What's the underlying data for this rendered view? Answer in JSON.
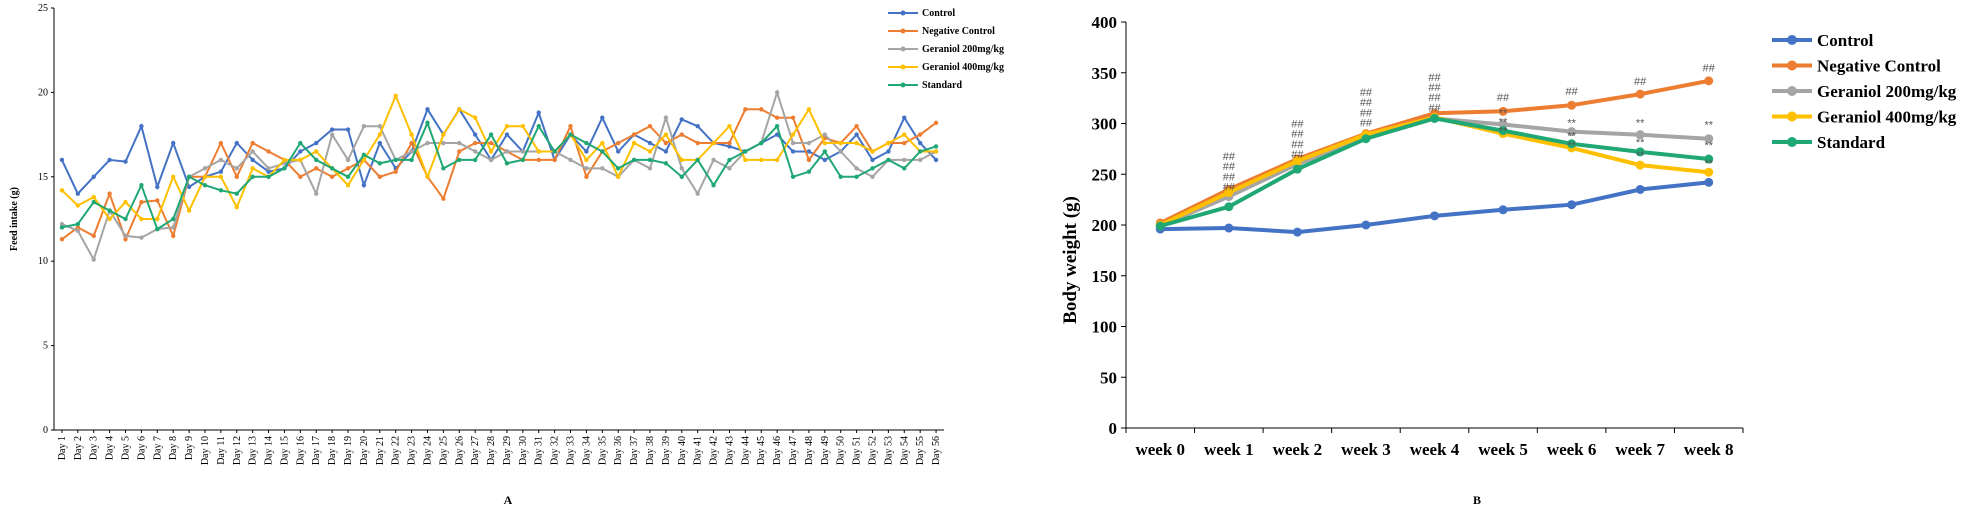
{
  "colors": {
    "Control": "#4472C4",
    "Negative Control": "#ED7D31",
    "Geraniol 200mg/kg": "#A5A5A5",
    "Geraniol 400mg/kg": "#FFC000",
    "Standard": "#1FA774"
  },
  "chart_data": [
    {
      "panel": "A",
      "type": "line",
      "ylabel": "Feed intake (g)",
      "xlabel": "",
      "ylim": [
        0,
        25
      ],
      "yticks": [
        0,
        5,
        10,
        15,
        20,
        25
      ],
      "legend_position": "top-right",
      "categories": [
        "Day 1",
        "Day 2",
        "Day 3",
        "Day 4",
        "Day 5",
        "Day 6",
        "Day 7",
        "Day 8",
        "Day 9",
        "Day 10",
        "Day 11",
        "Day 12",
        "Day 13",
        "Day 14",
        "Day 15",
        "Day 16",
        "Day 17",
        "Day 18",
        "Day 19",
        "Day 20",
        "Day 21",
        "Day 22",
        "Day 23",
        "Day 24",
        "Day 25",
        "Day 26",
        "Day 27",
        "Day 28",
        "Day 29",
        "Day 30",
        "Day 31",
        "Day 32",
        "Day 33",
        "Day 34",
        "Day 35",
        "Day 36",
        "Day 37",
        "Day 38",
        "Day 39",
        "Day 40",
        "Day 41",
        "Day 42",
        "Day 43",
        "Day 44",
        "Day 45",
        "Day 46",
        "Day 47",
        "Day 48",
        "Day 49",
        "Day 50",
        "Day 51",
        "Day 52",
        "Day 53",
        "Day 54",
        "Day 55",
        "Day 56"
      ],
      "series": [
        {
          "name": "Control",
          "values": [
            16.0,
            14.0,
            15.0,
            16.0,
            15.9,
            18.0,
            14.4,
            17.0,
            14.4,
            15.0,
            15.3,
            17.0,
            16.0,
            15.3,
            15.5,
            16.5,
            17.0,
            17.8,
            17.8,
            14.5,
            17.0,
            15.5,
            16.5,
            19.0,
            17.5,
            19.0,
            17.5,
            16.0,
            17.5,
            16.5,
            18.8,
            16.0,
            17.5,
            16.5,
            18.5,
            16.5,
            17.5,
            17.0,
            16.5,
            18.4,
            18.0,
            17.0,
            16.8,
            16.5,
            17.0,
            17.5,
            16.5,
            16.5,
            16.0,
            16.5,
            17.5,
            16.0,
            16.5,
            18.5,
            17.0,
            16.0
          ]
        },
        {
          "name": "Negative Control",
          "values": [
            11.3,
            12.0,
            11.5,
            14.0,
            11.3,
            13.5,
            13.6,
            11.5,
            15.0,
            15.0,
            17.0,
            15.0,
            17.0,
            16.5,
            16.0,
            15.0,
            15.5,
            15.0,
            15.5,
            16.0,
            15.0,
            15.3,
            17.0,
            15.0,
            13.7,
            16.5,
            17.0,
            17.0,
            16.5,
            16.0,
            16.0,
            16.0,
            18.0,
            15.0,
            16.5,
            17.0,
            17.5,
            18.0,
            17.0,
            17.5,
            17.0,
            17.0,
            17.0,
            19.0,
            19.0,
            18.5,
            18.5,
            16.0,
            17.3,
            17.0,
            18.0,
            16.5,
            17.0,
            17.0,
            17.5,
            18.2
          ]
        },
        {
          "name": "Geraniol 200mg/kg",
          "values": [
            12.2,
            11.8,
            10.1,
            13.0,
            11.5,
            11.4,
            11.9,
            12.0,
            15.0,
            15.5,
            16.0,
            15.5,
            16.5,
            15.5,
            15.8,
            16.0,
            14.0,
            17.5,
            16.0,
            18.0,
            18.0,
            16.0,
            16.5,
            17.0,
            17.0,
            17.0,
            16.5,
            16.0,
            16.5,
            16.5,
            16.5,
            16.5,
            16.0,
            15.5,
            15.5,
            15.0,
            16.0,
            15.5,
            18.5,
            15.5,
            14.0,
            16.0,
            15.5,
            16.5,
            17.0,
            20.0,
            17.0,
            17.0,
            17.5,
            16.5,
            15.5,
            15.0,
            16.0,
            16.0,
            16.0,
            16.5
          ]
        },
        {
          "name": "Geraniol 400mg/kg",
          "values": [
            14.2,
            13.3,
            13.8,
            12.5,
            13.5,
            12.5,
            12.5,
            15.0,
            13.0,
            15.0,
            15.0,
            13.2,
            15.5,
            15.0,
            16.0,
            16.0,
            16.5,
            15.5,
            14.5,
            16.0,
            17.5,
            19.8,
            17.5,
            15.0,
            17.5,
            19.0,
            18.5,
            16.5,
            18.0,
            18.0,
            16.5,
            16.5,
            17.5,
            16.0,
            17.0,
            15.0,
            17.0,
            16.5,
            17.5,
            16.0,
            16.0,
            17.0,
            18.0,
            16.0,
            16.0,
            16.0,
            17.5,
            19.0,
            17.0,
            17.0,
            17.0,
            16.5,
            17.0,
            17.5,
            16.5,
            16.5
          ]
        },
        {
          "name": "Standard",
          "values": [
            12.0,
            12.2,
            13.5,
            13.0,
            12.5,
            14.5,
            11.9,
            12.5,
            15.0,
            14.5,
            14.2,
            14.0,
            15.0,
            15.0,
            15.5,
            17.0,
            16.0,
            15.5,
            15.0,
            16.3,
            15.8,
            16.0,
            16.0,
            18.2,
            15.5,
            16.0,
            16.0,
            17.5,
            15.8,
            16.0,
            18.0,
            16.5,
            17.5,
            17.0,
            16.5,
            15.5,
            16.0,
            16.0,
            15.8,
            15.0,
            16.0,
            14.5,
            16.0,
            16.5,
            17.0,
            18.0,
            15.0,
            15.3,
            16.5,
            15.0,
            15.0,
            15.5,
            16.0,
            15.5,
            16.5,
            16.8
          ]
        }
      ],
      "panel_label": "A"
    },
    {
      "panel": "B",
      "type": "line",
      "ylabel": "Body weight (g)",
      "xlabel": "",
      "ylim": [
        0,
        400
      ],
      "yticks": [
        0,
        50,
        100,
        150,
        200,
        250,
        300,
        350,
        400
      ],
      "legend_position": "top-right",
      "categories": [
        "week 0",
        "week 1",
        "week 2",
        "week 3",
        "week 4",
        "week 5",
        "week 6",
        "week 7",
        "week 8"
      ],
      "series": [
        {
          "name": "Control",
          "values": [
            196,
            197,
            193,
            200,
            209,
            215,
            220,
            235,
            242
          ]
        },
        {
          "name": "Negative Control",
          "values": [
            202,
            235,
            265,
            290,
            310,
            312,
            318,
            329,
            342
          ]
        },
        {
          "name": "Geraniol 200mg/kg",
          "values": [
            199,
            228,
            260,
            286,
            305,
            299,
            292,
            289,
            285
          ]
        },
        {
          "name": "Geraniol 400mg/kg",
          "values": [
            200,
            232,
            263,
            289,
            306,
            290,
            276,
            259,
            252
          ]
        },
        {
          "name": "Standard",
          "values": [
            199,
            218,
            255,
            285,
            305,
            293,
            280,
            272,
            265
          ]
        }
      ],
      "annotations": [
        {
          "week": "week 1",
          "text": "##",
          "value": 264
        },
        {
          "week": "week 1",
          "text": "##",
          "value": 254
        },
        {
          "week": "week 1",
          "text": "##",
          "value": 244
        },
        {
          "week": "week 1",
          "text": "##",
          "value": 234
        },
        {
          "week": "week 2",
          "text": "##",
          "value": 296
        },
        {
          "week": "week 2",
          "text": "##",
          "value": 286
        },
        {
          "week": "week 2",
          "text": "##",
          "value": 276
        },
        {
          "week": "week 2",
          "text": "##",
          "value": 266
        },
        {
          "week": "week 3",
          "text": "##",
          "value": 327
        },
        {
          "week": "week 3",
          "text": "##",
          "value": 317
        },
        {
          "week": "week 3",
          "text": "##",
          "value": 307
        },
        {
          "week": "week 3",
          "text": "##",
          "value": 297
        },
        {
          "week": "week 4",
          "text": "##",
          "value": 342
        },
        {
          "week": "week 4",
          "text": "##",
          "value": 332
        },
        {
          "week": "week 4",
          "text": "##",
          "value": 322
        },
        {
          "week": "week 4",
          "text": "##",
          "value": 312
        },
        {
          "week": "week 5",
          "text": "##",
          "value": 322
        },
        {
          "week": "week 5",
          "text": "**",
          "value": 307
        },
        {
          "week": "week 5",
          "text": "**",
          "value": 298
        },
        {
          "week": "week 5",
          "text": "**",
          "value": 289
        },
        {
          "week": "week 6",
          "text": "##",
          "value": 328
        },
        {
          "week": "week 6",
          "text": "**",
          "value": 297
        },
        {
          "week": "week 6",
          "text": "**",
          "value": 284
        },
        {
          "week": "week 6",
          "text": "**",
          "value": 275
        },
        {
          "week": "week 7",
          "text": "##",
          "value": 338
        },
        {
          "week": "week 7",
          "text": "**",
          "value": 297
        },
        {
          "week": "week 7",
          "text": "**",
          "value": 278
        },
        {
          "week": "week 7",
          "text": "**",
          "value": 265
        },
        {
          "week": "week 8",
          "text": "##",
          "value": 351
        },
        {
          "week": "week 8",
          "text": "**",
          "value": 295
        },
        {
          "week": "week 8",
          "text": "**",
          "value": 275
        },
        {
          "week": "week 8",
          "text": "**",
          "value": 257
        }
      ],
      "panel_label": "B"
    }
  ]
}
